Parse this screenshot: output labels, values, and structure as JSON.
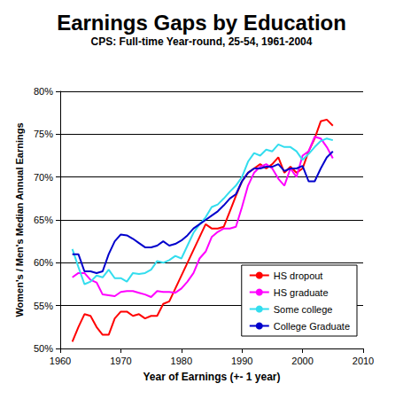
{
  "chart_data": {
    "type": "line",
    "title": "Earnings Gaps by Education",
    "subtitle": "CPS: Full-time Year-round, 25-54, 1961-2004",
    "x_label": "Year of Earnings (+- 1 year)",
    "y_label": "Women's / Men's Median Annual Earnings",
    "x": [
      1962,
      1963,
      1964,
      1965,
      1966,
      1967,
      1968,
      1969,
      1970,
      1971,
      1972,
      1973,
      1974,
      1975,
      1976,
      1977,
      1978,
      1979,
      1980,
      1981,
      1982,
      1983,
      1984,
      1985,
      1986,
      1987,
      1988,
      1989,
      1990,
      1991,
      1992,
      1993,
      1994,
      1995,
      1996,
      1997,
      1998,
      1999,
      2000,
      2001,
      2002,
      2003,
      2004,
      2005
    ],
    "series": [
      {
        "name": "HS dropout",
        "color": "#ff0000",
        "values": [
          50.8,
          52.5,
          54,
          53.8,
          52.5,
          51.6,
          51.6,
          53.5,
          54.3,
          54.3,
          53.8,
          54,
          53.5,
          53.8,
          53.8,
          55.2,
          55.5,
          57,
          58.5,
          60,
          61.5,
          63,
          64.5,
          64,
          64,
          64.2,
          66,
          67.8,
          69.5,
          70.5,
          71,
          71.5,
          71,
          71.5,
          72.3,
          70.5,
          71.2,
          70.5,
          71,
          73,
          74.5,
          76.5,
          76.7,
          76
        ]
      },
      {
        "name": "HS graduate",
        "color": "#ff00ff",
        "values": [
          58.3,
          58.8,
          58.8,
          58,
          57.7,
          56.3,
          56.2,
          56.1,
          56.6,
          56.7,
          56.7,
          56.5,
          56.3,
          56,
          56.7,
          56.6,
          56.6,
          56.5,
          57,
          57.8,
          58.8,
          60.5,
          61.3,
          63,
          63.6,
          64,
          64,
          64.2,
          66.5,
          69,
          70.5,
          71.2,
          71.5,
          71,
          69.8,
          69,
          71,
          70,
          72.5,
          73,
          74.7,
          74.5,
          73.5,
          72.2
        ]
      },
      {
        "name": "Some college",
        "color": "#33ddee",
        "values": [
          61.6,
          59.5,
          57.5,
          57.8,
          58.5,
          58.3,
          59.2,
          58.2,
          58.2,
          57.8,
          58.8,
          58.7,
          58.8,
          59.2,
          60.2,
          60,
          60.3,
          60.8,
          60.5,
          62,
          63.5,
          64.5,
          65.3,
          66.5,
          66.8,
          67.5,
          68.3,
          69,
          70,
          71.8,
          72.8,
          72.5,
          73.2,
          73,
          73.8,
          73.5,
          73.5,
          73,
          72,
          72.7,
          73.5,
          74.2,
          74.5,
          74.3
        ]
      },
      {
        "name": "College Graduate",
        "color": "#0000cc",
        "values": [
          61,
          61,
          59,
          59,
          58.8,
          59,
          61,
          62.5,
          63.3,
          63.2,
          62.8,
          62.3,
          61.8,
          61.8,
          62,
          62.5,
          62,
          62.2,
          62.6,
          63.2,
          64,
          64.5,
          65,
          65.5,
          66,
          66.7,
          67.5,
          68,
          69.5,
          70.5,
          71,
          71,
          71.2,
          71.2,
          71.5,
          70.7,
          71,
          71,
          71.3,
          69.5,
          69.5,
          71,
          72.3,
          73
        ]
      }
    ],
    "xlim": [
      1960,
      2010
    ],
    "xticks": [
      1960,
      1970,
      1980,
      1990,
      2000,
      2010
    ],
    "ylim": [
      50,
      80
    ],
    "yticks": [
      {
        "value": 50,
        "label": "50%"
      },
      {
        "value": 55,
        "label": "55%"
      },
      {
        "value": 60,
        "label": "60%"
      },
      {
        "value": 65,
        "label": "65%"
      },
      {
        "value": 70,
        "label": "70%"
      },
      {
        "value": 75,
        "label": "75%"
      },
      {
        "value": 80,
        "label": "80%"
      }
    ],
    "grid": true,
    "legend": "lower right"
  }
}
